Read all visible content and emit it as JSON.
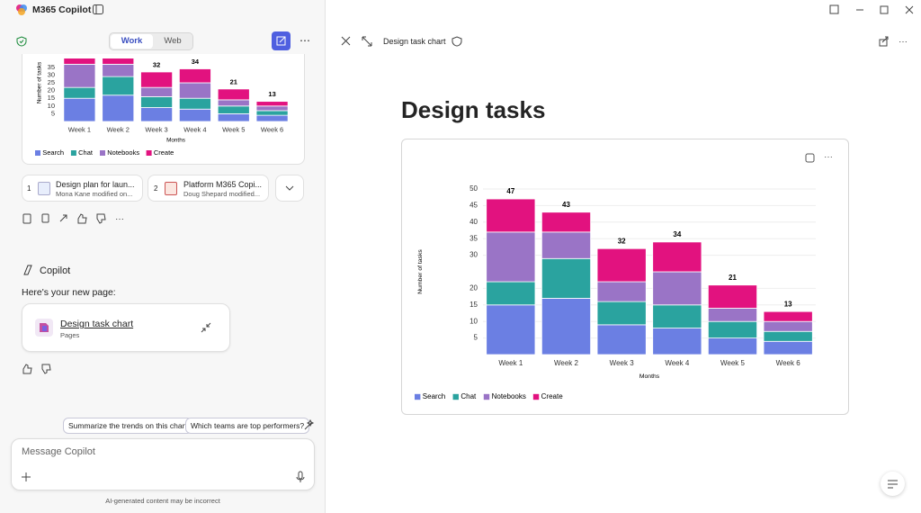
{
  "app": {
    "title": "M365 Copilot"
  },
  "left": {
    "tabs": [
      "Work",
      "Web"
    ],
    "references": [
      {
        "index": 1,
        "title": "Design plan for laun...",
        "subtitle": "Mona Kane modified on..."
      },
      {
        "index": 2,
        "title": "Platform M365 Copi...",
        "subtitle": "Doug Shepard modified..."
      }
    ],
    "copilot_label": "Copilot",
    "message": "Here's your new page:",
    "page_card": {
      "title": "Design task chart",
      "type": "Pages"
    },
    "suggestions": [
      "Summarize the trends on this chart",
      "Which teams are top performers?"
    ],
    "input_placeholder": "Message Copilot",
    "disclaimer": "AI-generated content may be incorrect"
  },
  "right": {
    "document_title": "Design task chart",
    "heading": "Design tasks"
  },
  "chart_data": [
    {
      "type": "bar",
      "stacked": true,
      "ylabel": "Number of tasks",
      "xlabel": "Months",
      "categories": [
        "Week 1",
        "Week 2",
        "Week 3",
        "Week 4",
        "Week 5",
        "Week 6"
      ],
      "series": [
        {
          "name": "Search",
          "color": "#6b7fe3",
          "values": [
            15,
            17,
            9,
            8,
            5,
            4
          ]
        },
        {
          "name": "Chat",
          "color": "#2aa39f",
          "values": [
            7,
            12,
            7,
            7,
            5,
            3
          ]
        },
        {
          "name": "Notebooks",
          "color": "#9a74c6",
          "values": [
            15,
            8,
            6,
            10,
            4,
            3
          ]
        },
        {
          "name": "Create",
          "color": "#e2127f",
          "values": [
            10,
            6,
            10,
            9,
            7,
            3
          ]
        }
      ],
      "totals": [
        47,
        43,
        32,
        34,
        21,
        13
      ],
      "ylim": [
        0,
        50
      ],
      "yticks": [
        5,
        10,
        15,
        20,
        30,
        35,
        40,
        45,
        50
      ],
      "grid": true,
      "legend": "bottom"
    },
    {
      "type": "bar",
      "stacked": true,
      "ylabel": "Number of tasks",
      "xlabel": "Months",
      "categories": [
        "Week 1",
        "Week 2",
        "Week 3",
        "Week 4",
        "Week 5",
        "Week 6"
      ],
      "series": [
        {
          "name": "Search",
          "color": "#6b7fe3",
          "values": [
            15,
            17,
            9,
            8,
            5,
            4
          ]
        },
        {
          "name": "Chat",
          "color": "#2aa39f",
          "values": [
            7,
            12,
            7,
            7,
            5,
            3
          ]
        },
        {
          "name": "Notebooks",
          "color": "#9a74c6",
          "values": [
            15,
            8,
            6,
            10,
            4,
            3
          ]
        },
        {
          "name": "Create",
          "color": "#e2127f",
          "values": [
            10,
            6,
            10,
            9,
            7,
            3
          ]
        }
      ],
      "totals": [
        47,
        43,
        32,
        34,
        21,
        13
      ],
      "ylim": [
        0,
        50
      ],
      "yticks": [
        5,
        10,
        15,
        20,
        25,
        30,
        35
      ],
      "grid": false,
      "legend": "bottom"
    }
  ]
}
